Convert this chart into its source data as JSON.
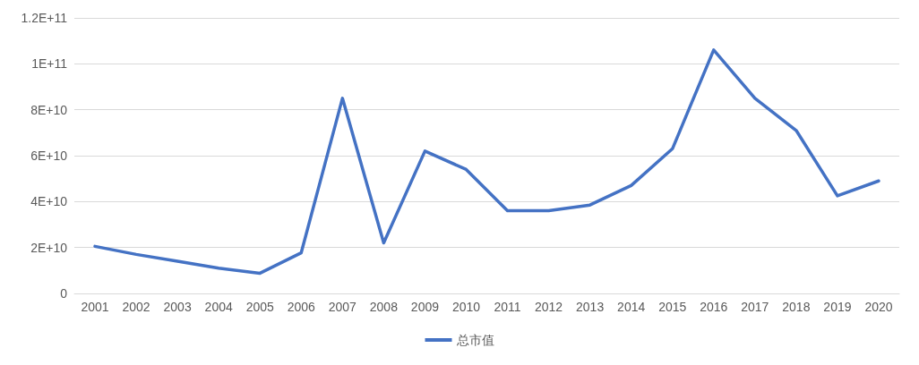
{
  "chart_data": {
    "type": "line",
    "categories": [
      "2001",
      "2002",
      "2003",
      "2004",
      "2005",
      "2006",
      "2007",
      "2008",
      "2009",
      "2010",
      "2011",
      "2012",
      "2013",
      "2014",
      "2015",
      "2016",
      "2017",
      "2018",
      "2019",
      "2020"
    ],
    "series": [
      {
        "name": "总市值",
        "color": "#4472c4",
        "values": [
          20500000000,
          17000000000,
          14000000000,
          11000000000,
          8800000000,
          17700000000,
          85000000000,
          22000000000,
          62000000000,
          54000000000,
          36000000000,
          36000000000,
          38500000000,
          47000000000,
          63000000000,
          106000000000,
          85000000000,
          71000000000,
          42500000000,
          49000000000
        ]
      }
    ],
    "ylim": [
      0,
      120000000000
    ],
    "yticks": [
      {
        "value": 0,
        "label": "0"
      },
      {
        "value": 20000000000,
        "label": "2E+10"
      },
      {
        "value": 40000000000,
        "label": "4E+10"
      },
      {
        "value": 60000000000,
        "label": "6E+10"
      },
      {
        "value": 80000000000,
        "label": "8E+10"
      },
      {
        "value": 100000000000,
        "label": "1E+11"
      },
      {
        "value": 120000000000,
        "label": "1.2E+11"
      }
    ],
    "grid": "y",
    "legend": "bottom",
    "marker": "none",
    "line_style": "solid"
  }
}
